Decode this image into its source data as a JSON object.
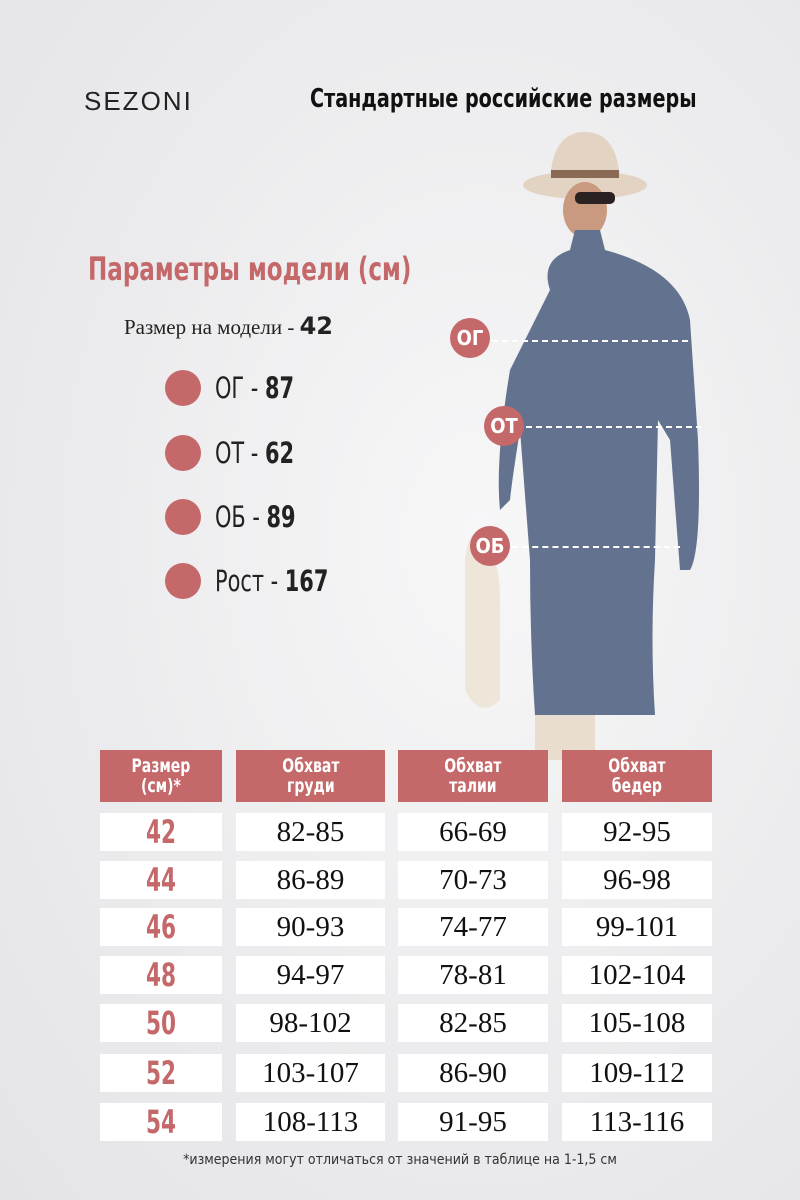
{
  "brand": "SEZONI",
  "title": "Стандартные российские размеры",
  "model": {
    "title": "Параметры модели (см)",
    "size_label": "Размер на модели - ",
    "size_value": "42",
    "params": [
      {
        "label": "ОГ - ",
        "value": "87"
      },
      {
        "label": "ОТ - ",
        "value": "62"
      },
      {
        "label": "ОБ  - ",
        "value": "89"
      },
      {
        "label": "Рост - ",
        "value": "167"
      }
    ]
  },
  "markers": {
    "chest": "ОГ",
    "waist": "ОТ",
    "hips": "ОБ"
  },
  "colors": {
    "accent": "#c4686a",
    "dress": "#5f6f8c"
  },
  "table": {
    "headers": [
      "Размер\n(см)*",
      "Обхват\nгруди",
      "Обхват\nталии",
      "Обхват\nбедер"
    ],
    "rows": [
      [
        "42",
        "82-85",
        "66-69",
        "92-95"
      ],
      [
        "44",
        "86-89",
        "70-73",
        "96-98"
      ],
      [
        "46",
        "90-93",
        "74-77",
        "99-101"
      ],
      [
        "48",
        "94-97",
        "78-81",
        "102-104"
      ],
      [
        "50",
        "98-102",
        "82-85",
        "105-108"
      ],
      [
        "52",
        "103-107",
        "86-90",
        "109-112"
      ],
      [
        "54",
        "108-113",
        "91-95",
        "113-116"
      ]
    ]
  },
  "footnote": "*измерения могут отличаться от значений в таблице на 1-1,5 см"
}
